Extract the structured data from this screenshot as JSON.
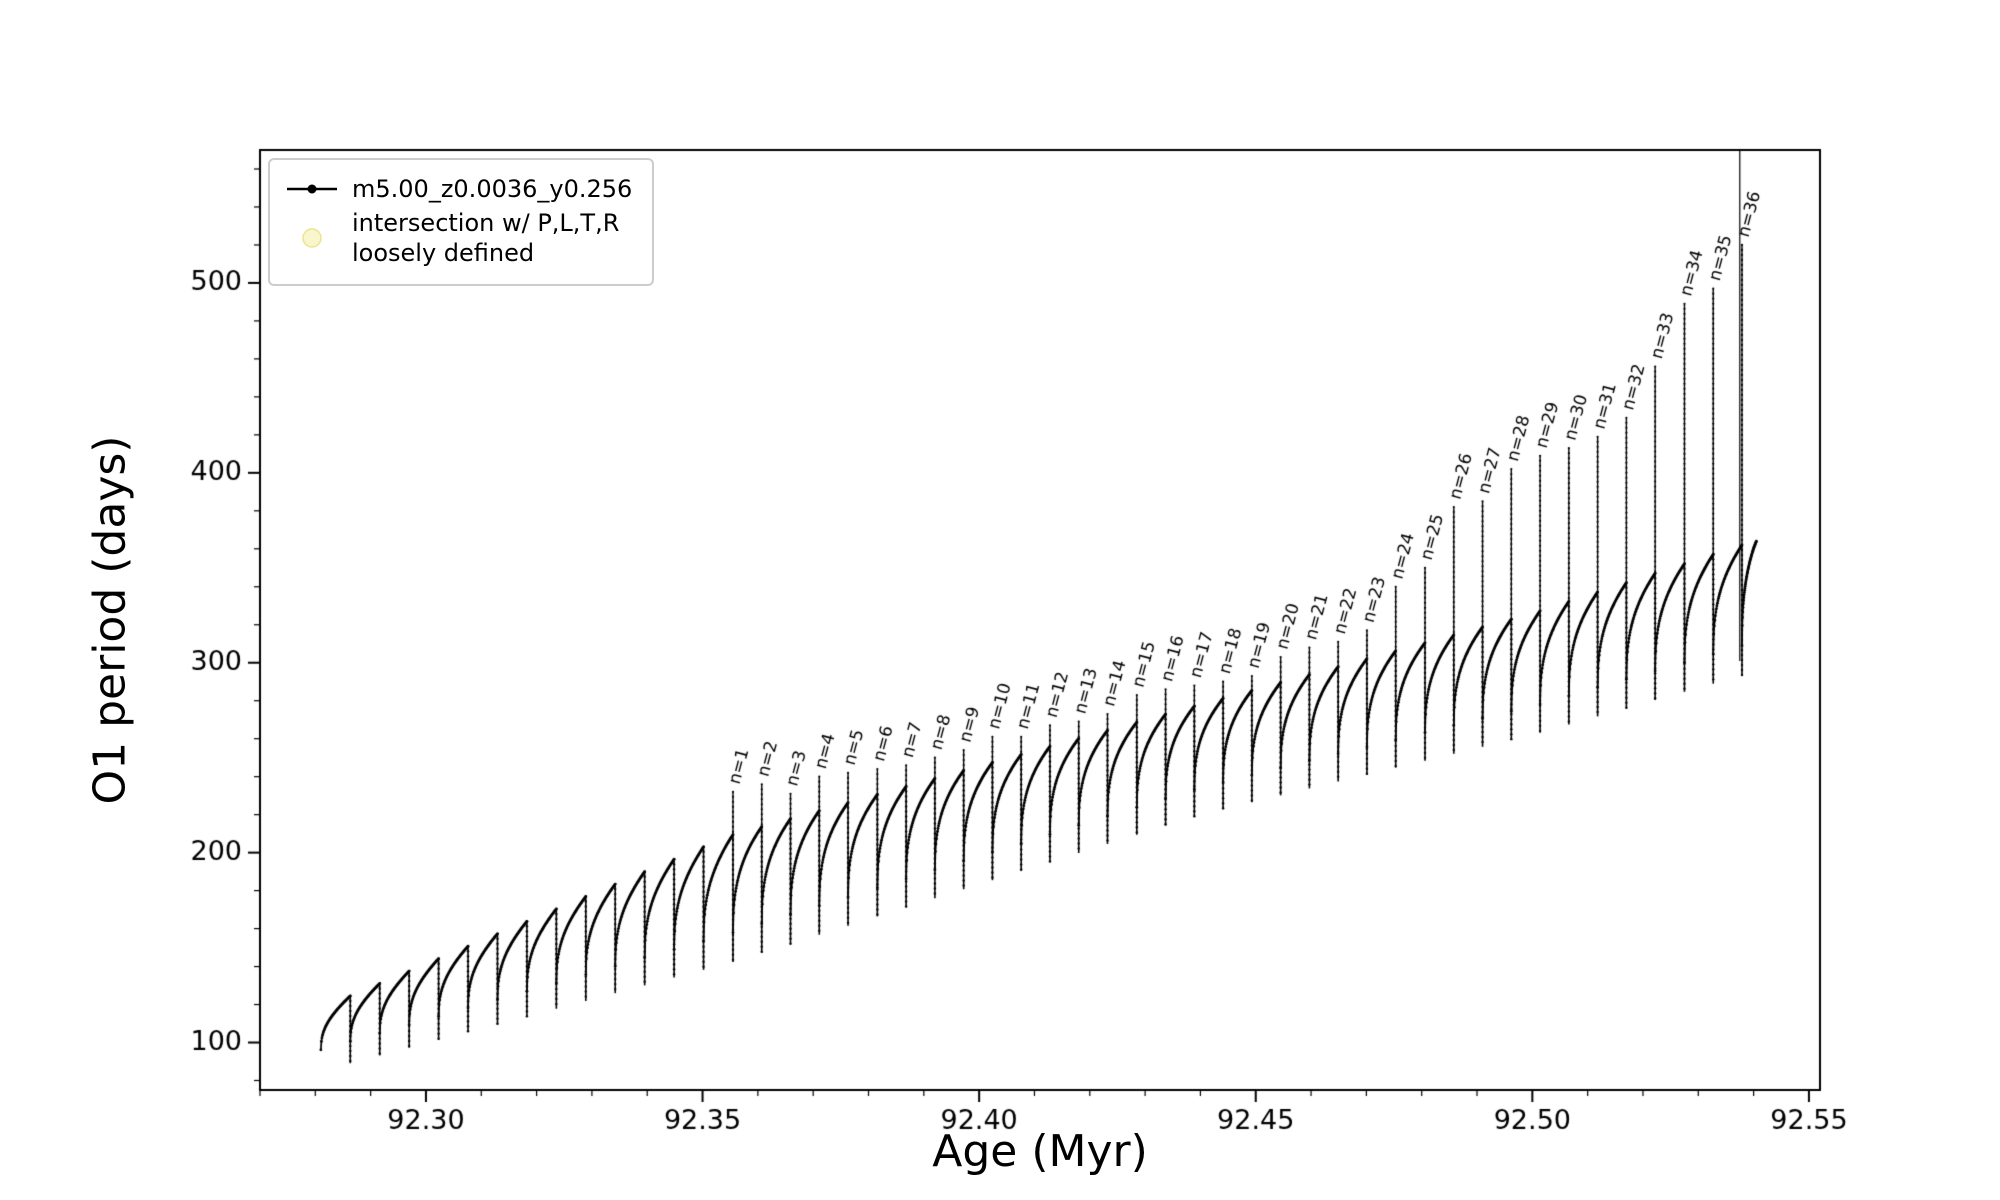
{
  "figure": {
    "background": "#ffffff"
  },
  "labels": {
    "xlabel": "Age (Myr)",
    "ylabel": "O1 period (days)"
  },
  "legend": {
    "entries": [
      {
        "label": "m5.00_z0.0036_y0.256",
        "marker": "line-with-dot",
        "color": "#000000"
      },
      {
        "label_line1": "intersection w/ P,L,T,R",
        "label_line2": "loosely defined",
        "marker": "circle",
        "color": "#f9f6cd",
        "edge_color": "#ece48f"
      }
    ]
  },
  "chart_data": {
    "type": "line",
    "series_name": "m5.00_z0.0036_y0.256",
    "title": "",
    "xlabel": "Age (Myr)",
    "ylabel": "O1 period (days)",
    "xlim": [
      92.27,
      92.552
    ],
    "ylim": [
      75,
      570
    ],
    "xticks": [
      92.3,
      92.35,
      92.4,
      92.45,
      92.5,
      92.55
    ],
    "xtick_labels": [
      "92.30",
      "92.35",
      "92.40",
      "92.45",
      "92.50",
      "92.55"
    ],
    "yticks": [
      100,
      200,
      300,
      400,
      500
    ],
    "ytick_labels": [
      "100",
      "200",
      "300",
      "400",
      "500"
    ],
    "x_minor_step": 0.01,
    "y_minor_step": 20,
    "grid": false,
    "legend_position": "upper left",
    "line_color": "#000000",
    "curve_x_start": 92.281,
    "curve_x_end": 92.5405,
    "pre_spike_cycles": 14,
    "envelope_anchors": {
      "x": [
        92.281,
        92.355,
        92.44,
        92.5,
        92.54
      ],
      "y_low": [
        93,
        150,
        228,
        270,
        303
      ],
      "y_high": [
        118,
        209,
        278,
        326,
        364
      ]
    },
    "spikes": [
      {
        "label": "n=1",
        "x": 92.3555,
        "top": 232
      },
      {
        "label": "n=2",
        "x": 92.3607,
        "top": 236
      },
      {
        "label": "n=3",
        "x": 92.3659,
        "top": 231
      },
      {
        "label": "n=4",
        "x": 92.3711,
        "top": 240
      },
      {
        "label": "n=5",
        "x": 92.3763,
        "top": 242
      },
      {
        "label": "n=6",
        "x": 92.3816,
        "top": 244
      },
      {
        "label": "n=7",
        "x": 92.3868,
        "top": 246
      },
      {
        "label": "n=8",
        "x": 92.392,
        "top": 250
      },
      {
        "label": "n=9",
        "x": 92.3972,
        "top": 254
      },
      {
        "label": "n=10",
        "x": 92.4024,
        "top": 261
      },
      {
        "label": "n=11",
        "x": 92.4076,
        "top": 261
      },
      {
        "label": "n=12",
        "x": 92.4128,
        "top": 267
      },
      {
        "label": "n=13",
        "x": 92.418,
        "top": 269
      },
      {
        "label": "n=14",
        "x": 92.4232,
        "top": 273
      },
      {
        "label": "n=15",
        "x": 92.4285,
        "top": 283
      },
      {
        "label": "n=16",
        "x": 92.4337,
        "top": 286
      },
      {
        "label": "n=17",
        "x": 92.4389,
        "top": 288
      },
      {
        "label": "n=18",
        "x": 92.4441,
        "top": 290
      },
      {
        "label": "n=19",
        "x": 92.4493,
        "top": 293
      },
      {
        "label": "n=20",
        "x": 92.4545,
        "top": 303
      },
      {
        "label": "n=21",
        "x": 92.4597,
        "top": 308
      },
      {
        "label": "n=22",
        "x": 92.4649,
        "top": 311
      },
      {
        "label": "n=23",
        "x": 92.4701,
        "top": 317
      },
      {
        "label": "n=24",
        "x": 92.4753,
        "top": 340
      },
      {
        "label": "n=25",
        "x": 92.4806,
        "top": 350
      },
      {
        "label": "n=26",
        "x": 92.4858,
        "top": 382
      },
      {
        "label": "n=27",
        "x": 92.491,
        "top": 385
      },
      {
        "label": "n=28",
        "x": 92.4962,
        "top": 402
      },
      {
        "label": "n=29",
        "x": 92.5014,
        "top": 409
      },
      {
        "label": "n=30",
        "x": 92.5066,
        "top": 413
      },
      {
        "label": "n=31",
        "x": 92.5118,
        "top": 419
      },
      {
        "label": "n=32",
        "x": 92.517,
        "top": 429
      },
      {
        "label": "n=33",
        "x": 92.5222,
        "top": 456
      },
      {
        "label": "n=34",
        "x": 92.5275,
        "top": 489
      },
      {
        "label": "n=35",
        "x": 92.5327,
        "top": 497
      },
      {
        "label": "n=36",
        "x": 92.5379,
        "top": 520
      }
    ],
    "vline_x": 92.5375
  }
}
